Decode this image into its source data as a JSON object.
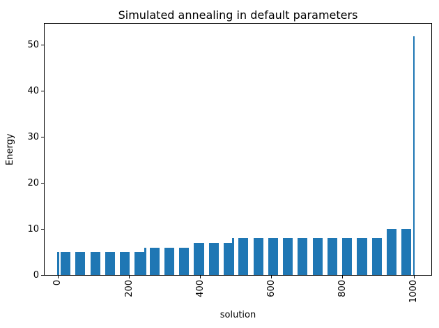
{
  "chart_data": {
    "type": "bar",
    "title": "Simulated annealing in default parameters",
    "xlabel": "solution",
    "ylabel": "Energy",
    "xlim": [
      -38,
      1049
    ],
    "ylim": [
      0,
      54.7
    ],
    "xticks": [
      0,
      200,
      400,
      600,
      800,
      1000
    ],
    "yticks": [
      0,
      10,
      20,
      30,
      40,
      50
    ],
    "grid": false,
    "legend": null,
    "bar_color": "#1f77b4",
    "bars": [
      {
        "x": 0,
        "height": 5,
        "width": 5
      },
      {
        "x": 20.8,
        "height": 5,
        "width": 27.8
      },
      {
        "x": 62.5,
        "height": 5,
        "width": 27.8
      },
      {
        "x": 104.2,
        "height": 5,
        "width": 27.8
      },
      {
        "x": 145.8,
        "height": 5,
        "width": 27.8
      },
      {
        "x": 187.5,
        "height": 5,
        "width": 27.8
      },
      {
        "x": 229.2,
        "height": 5,
        "width": 27.8
      },
      {
        "x": 245,
        "height": 6,
        "width": 6
      },
      {
        "x": 270.8,
        "height": 6,
        "width": 27.8
      },
      {
        "x": 312.5,
        "height": 6,
        "width": 27.8
      },
      {
        "x": 354.2,
        "height": 6,
        "width": 27.8
      },
      {
        "x": 395.8,
        "height": 7,
        "width": 27.8
      },
      {
        "x": 437.5,
        "height": 7,
        "width": 27.8
      },
      {
        "x": 479.2,
        "height": 7,
        "width": 27.8
      },
      {
        "x": 491,
        "height": 8,
        "width": 6
      },
      {
        "x": 520.8,
        "height": 8,
        "width": 27.8
      },
      {
        "x": 562.5,
        "height": 8,
        "width": 27.8
      },
      {
        "x": 604.2,
        "height": 8,
        "width": 27.8
      },
      {
        "x": 645.8,
        "height": 8,
        "width": 27.8
      },
      {
        "x": 687.5,
        "height": 8,
        "width": 27.8
      },
      {
        "x": 729.2,
        "height": 8,
        "width": 27.8
      },
      {
        "x": 770.8,
        "height": 8,
        "width": 27.8
      },
      {
        "x": 812.5,
        "height": 8,
        "width": 27.8
      },
      {
        "x": 854.2,
        "height": 8,
        "width": 27.8
      },
      {
        "x": 895.8,
        "height": 8,
        "width": 27.8
      },
      {
        "x": 937.5,
        "height": 10,
        "width": 27.8
      },
      {
        "x": 979.2,
        "height": 10,
        "width": 27.8
      },
      {
        "x": 1000,
        "height": 52,
        "width": 5
      }
    ]
  }
}
